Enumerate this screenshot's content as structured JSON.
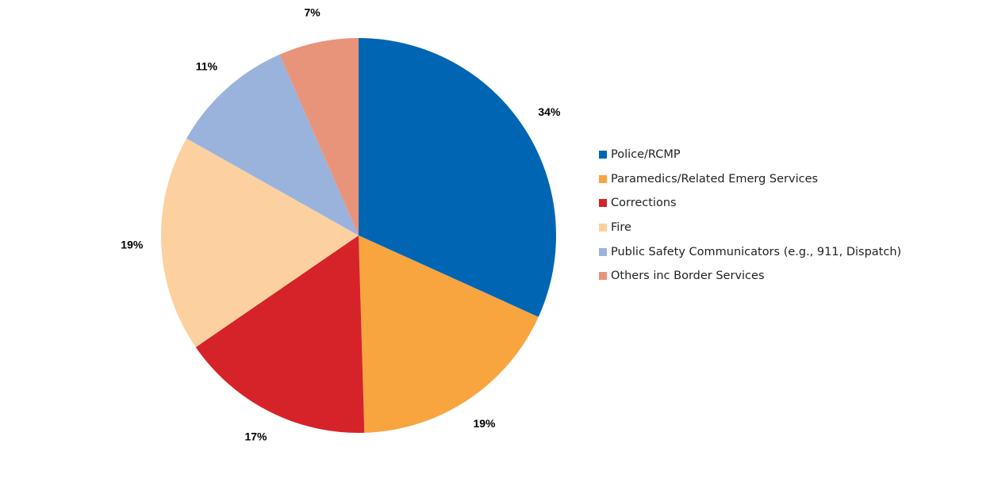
{
  "chart_data": {
    "type": "pie",
    "start_angle_deg": 0,
    "direction": "clockwise",
    "legend_position": "right",
    "slices": [
      {
        "name": "Police/RCMP",
        "value": 34,
        "label": "34%",
        "color": "#0066b3"
      },
      {
        "name": "Paramedics/Related Emerg Services",
        "value": 19,
        "label": "19%",
        "color": "#f8a540"
      },
      {
        "name": "Corrections",
        "value": 17,
        "label": "17%",
        "color": "#d6232a"
      },
      {
        "name": "Fire",
        "value": 19,
        "label": "19%",
        "color": "#fcd19f"
      },
      {
        "name": "Public Safety Communicators (e.g., 911, Dispatch)",
        "value": 11,
        "label": "11%",
        "color": "#9ab3dc"
      },
      {
        "name": "Others inc Border Services",
        "value": 7,
        "label": "7%",
        "color": "#e8947b"
      }
    ]
  }
}
